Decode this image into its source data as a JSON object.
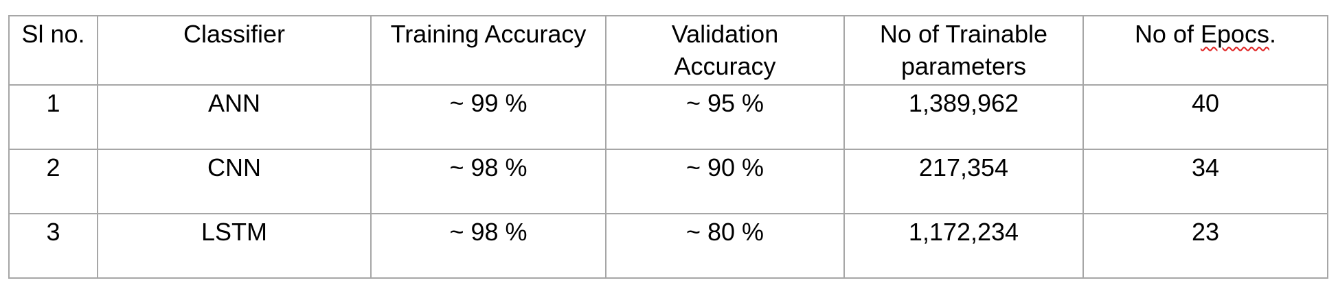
{
  "table": {
    "headers": [
      "Sl no.",
      "Classifier",
      "Training Accuracy",
      "Validation Accuracy",
      "No of Trainable parameters"
    ],
    "epochs_header": {
      "prefix": "No of ",
      "flagged_word": "Epocs",
      "suffix": "."
    },
    "rows": [
      [
        "1",
        "ANN",
        "~ 99 %",
        "~ 95 %",
        "1,389,962",
        "40"
      ],
      [
        "2",
        "CNN",
        "~ 98 %",
        "~ 90 %",
        "217,354",
        "34"
      ],
      [
        "3",
        "LSTM",
        "~ 98 %",
        "~ 80 %",
        "1,172,234",
        "23"
      ]
    ],
    "colors": {
      "border": "#a6a6a6",
      "spellcheck_underline": "#e02020"
    }
  }
}
